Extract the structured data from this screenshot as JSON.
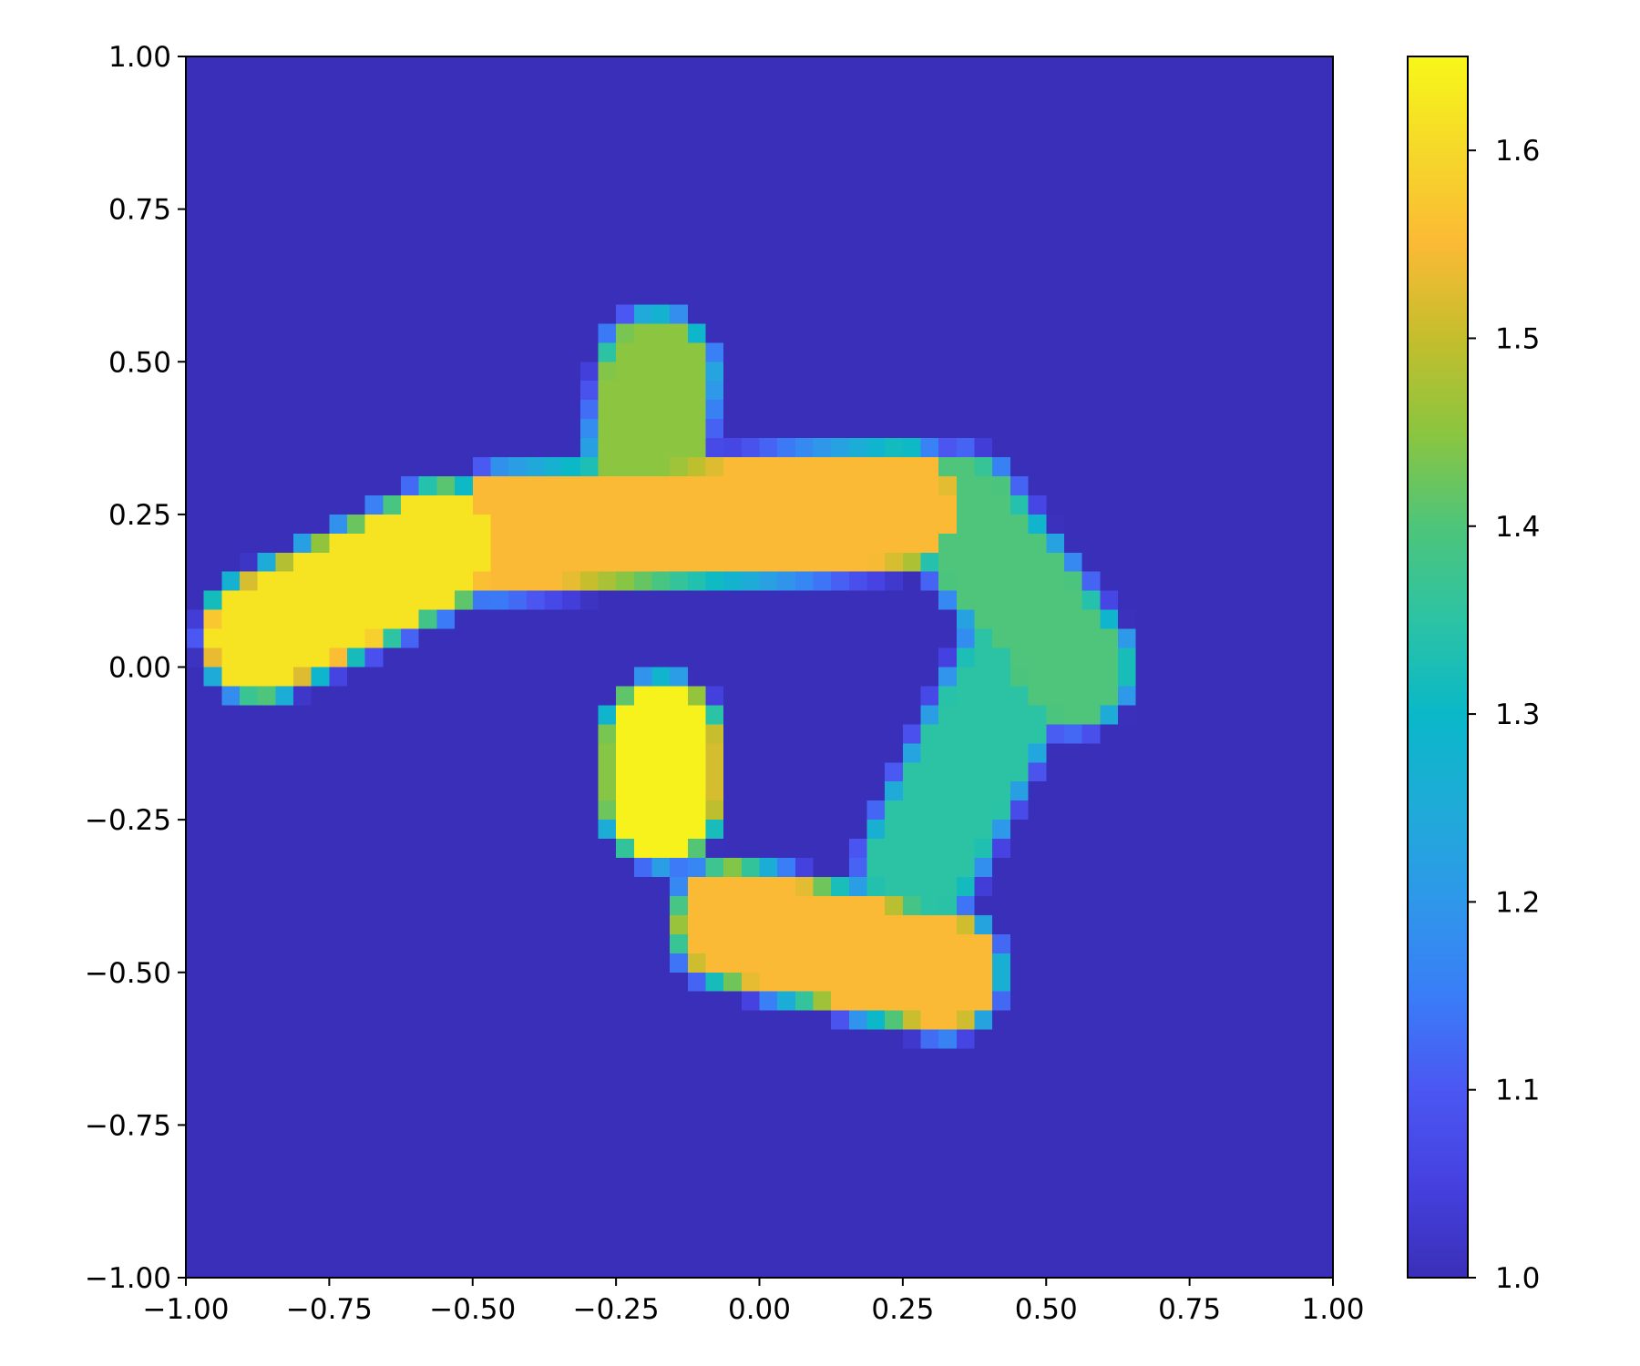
{
  "chart_data": {
    "type": "heatmap",
    "title": "",
    "xlabel": "",
    "ylabel": "",
    "xlim": [
      -1.0,
      1.0
    ],
    "ylim": [
      -1.0,
      1.0
    ],
    "grid": false,
    "colormap": "plasma-like (indigo-blue-teal-green-yellow)",
    "colormap_stops": [
      {
        "value": 1.0,
        "color": "#3a2fb8"
      },
      {
        "value": 1.05,
        "color": "#4541e0"
      },
      {
        "value": 1.1,
        "color": "#4b57f2"
      },
      {
        "value": 1.15,
        "color": "#3a7df7"
      },
      {
        "value": 1.2,
        "color": "#2f97ea"
      },
      {
        "value": 1.25,
        "color": "#1fabd8"
      },
      {
        "value": 1.3,
        "color": "#0ab8c8"
      },
      {
        "value": 1.35,
        "color": "#2cc3a4"
      },
      {
        "value": 1.4,
        "color": "#4ec57a"
      },
      {
        "value": 1.45,
        "color": "#8cc53f"
      },
      {
        "value": 1.5,
        "color": "#c4be2d"
      },
      {
        "value": 1.55,
        "color": "#fbba35"
      },
      {
        "value": 1.6,
        "color": "#f6d82a"
      },
      {
        "value": 1.65,
        "color": "#f7f719"
      }
    ],
    "vmin": 1.0,
    "vmax": 1.65,
    "background_value": 1.0,
    "x_ticks": [
      "−1.00",
      "−0.75",
      "−0.50",
      "−0.25",
      "0.00",
      "0.25",
      "0.50",
      "0.75",
      "1.00"
    ],
    "x_tick_values": [
      -1.0,
      -0.75,
      -0.5,
      -0.25,
      0.0,
      0.25,
      0.5,
      0.75,
      1.0
    ],
    "y_ticks": [
      "−1.00",
      "−0.75",
      "−0.50",
      "−0.25",
      "0.00",
      "0.25",
      "0.50",
      "0.75",
      "1.00"
    ],
    "y_tick_values": [
      -1.0,
      -0.75,
      -0.5,
      -0.25,
      0.0,
      0.25,
      0.5,
      0.75,
      1.0
    ],
    "colorbar": {
      "ticks": [
        "1.0",
        "1.1",
        "1.2",
        "1.3",
        "1.4",
        "1.5",
        "1.6"
      ],
      "tick_values": [
        1.0,
        1.1,
        1.2,
        1.3,
        1.4,
        1.5,
        1.6
      ]
    },
    "regions": [
      {
        "name": "upper-left arm",
        "from": [
          -0.87,
          0.05
        ],
        "to": [
          -0.55,
          0.2
        ],
        "value": 1.62
      },
      {
        "name": "central bar",
        "from": [
          -0.45,
          0.22
        ],
        "to": [
          0.25,
          0.26
        ],
        "value": 1.55
      },
      {
        "name": "top lobe",
        "from": [
          -0.18,
          0.48
        ],
        "to": [
          -0.2,
          0.3
        ],
        "value": 1.45
      },
      {
        "name": "right arm",
        "from": [
          0.35,
          0.25
        ],
        "to": [
          0.55,
          0.0
        ],
        "value": 1.4
      },
      {
        "name": "lower-right arm",
        "from": [
          0.45,
          0.0
        ],
        "to": [
          0.28,
          -0.32
        ],
        "value": 1.35
      },
      {
        "name": "central lobe",
        "from": [
          -0.17,
          -0.12
        ],
        "to": [
          -0.17,
          -0.22
        ],
        "value": 1.64
      },
      {
        "name": "bottom arm",
        "from": [
          -0.05,
          -0.42
        ],
        "to": [
          0.32,
          -0.5
        ],
        "value": 1.55
      }
    ]
  }
}
